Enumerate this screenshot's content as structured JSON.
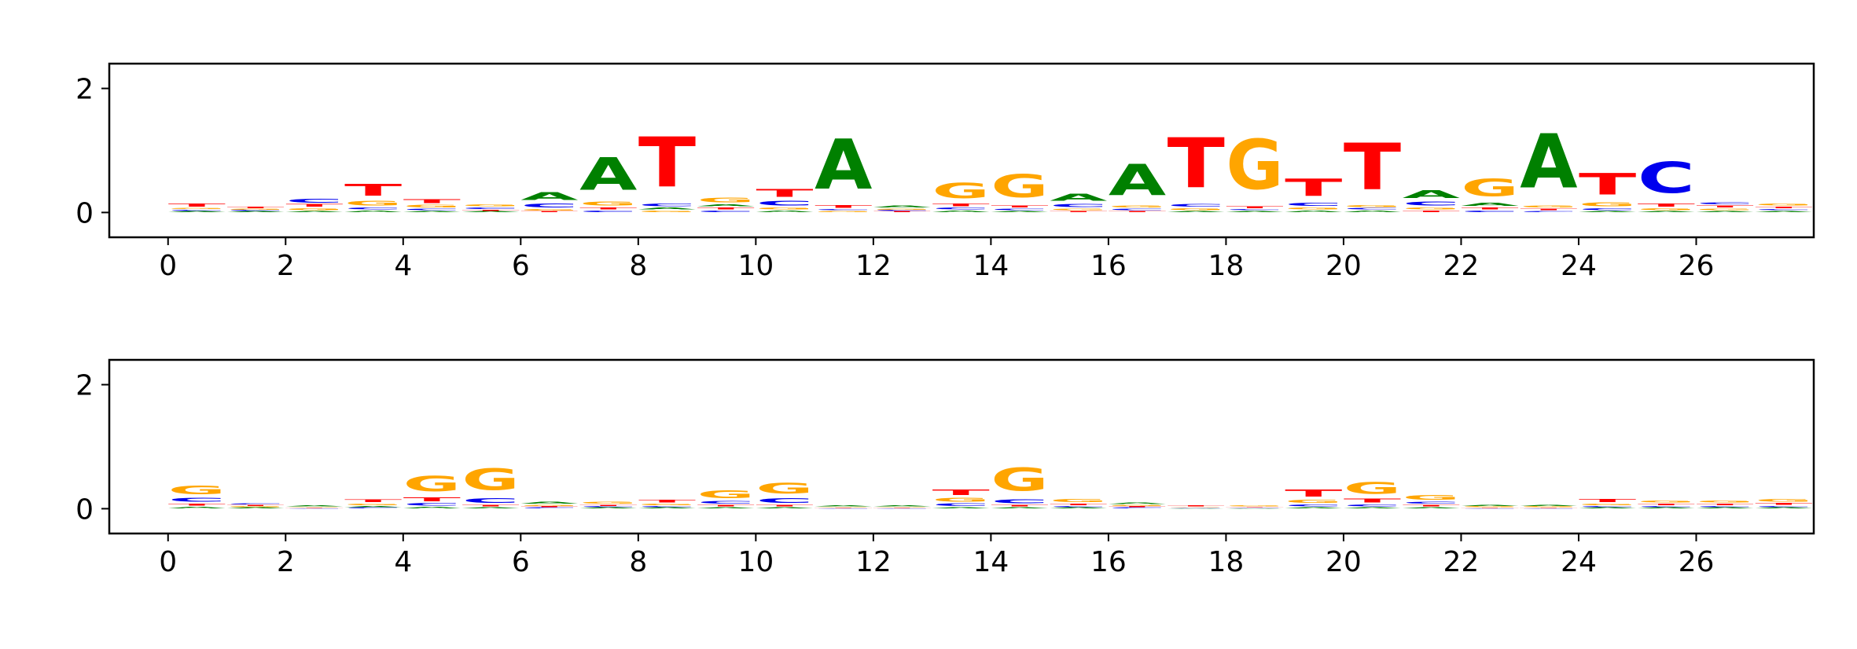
{
  "colors": {
    "A": "#008000",
    "C": "#0000ee",
    "G": "#ffa500",
    "T": "#ff0000"
  },
  "chart_data": [
    {
      "type": "sequence-logo",
      "title": "",
      "xlabel": "",
      "ylabel": "",
      "xlim": [
        -1,
        28
      ],
      "ylim": [
        -0.4,
        2.4
      ],
      "xticks": [
        0,
        2,
        4,
        6,
        8,
        10,
        12,
        14,
        16,
        18,
        20,
        22,
        24,
        26
      ],
      "yticks": [
        0,
        2
      ],
      "positions": [
        [
          {
            "b": "A",
            "h": 0.02
          },
          {
            "b": "C",
            "h": 0.03
          },
          {
            "b": "G",
            "h": 0.03
          },
          {
            "b": "T",
            "h": 0.08
          }
        ],
        [
          {
            "b": "A",
            "h": 0.02
          },
          {
            "b": "C",
            "h": 0.02
          },
          {
            "b": "G",
            "h": 0.02
          },
          {
            "b": "T",
            "h": 0.04
          }
        ],
        [
          {
            "b": "A",
            "h": 0.03
          },
          {
            "b": "G",
            "h": 0.05
          },
          {
            "b": "T",
            "h": 0.06
          },
          {
            "b": "C",
            "h": 0.1
          }
        ],
        [
          {
            "b": "A",
            "h": 0.04
          },
          {
            "b": "C",
            "h": 0.05
          },
          {
            "b": "G",
            "h": 0.12
          },
          {
            "b": "T",
            "h": 0.3
          }
        ],
        [
          {
            "b": "A",
            "h": 0.03
          },
          {
            "b": "C",
            "h": 0.04
          },
          {
            "b": "G",
            "h": 0.06
          },
          {
            "b": "T",
            "h": 0.1
          }
        ],
        [
          {
            "b": "A",
            "h": 0.02
          },
          {
            "b": "T",
            "h": 0.03
          },
          {
            "b": "C",
            "h": 0.04
          },
          {
            "b": "G",
            "h": 0.05
          }
        ],
        [
          {
            "b": "T",
            "h": 0.02
          },
          {
            "b": "G",
            "h": 0.04
          },
          {
            "b": "C",
            "h": 0.1
          },
          {
            "b": "A",
            "h": 0.2
          }
        ],
        [
          {
            "b": "C",
            "h": 0.04
          },
          {
            "b": "T",
            "h": 0.05
          },
          {
            "b": "G",
            "h": 0.1
          },
          {
            "b": "A",
            "h": 0.85
          }
        ],
        [
          {
            "b": "G",
            "h": 0.04
          },
          {
            "b": "A",
            "h": 0.05
          },
          {
            "b": "C",
            "h": 0.06
          },
          {
            "b": "T",
            "h": 1.3
          }
        ],
        [
          {
            "b": "C",
            "h": 0.04
          },
          {
            "b": "T",
            "h": 0.05
          },
          {
            "b": "A",
            "h": 0.05
          },
          {
            "b": "G",
            "h": 0.12
          }
        ],
        [
          {
            "b": "A",
            "h": 0.04
          },
          {
            "b": "G",
            "h": 0.05
          },
          {
            "b": "C",
            "h": 0.12
          },
          {
            "b": "T",
            "h": 0.2
          }
        ],
        [
          {
            "b": "G",
            "h": 0.03
          },
          {
            "b": "C",
            "h": 0.03
          },
          {
            "b": "T",
            "h": 0.06
          },
          {
            "b": "A",
            "h": 1.3
          }
        ],
        [
          {
            "b": "T",
            "h": 0.02
          },
          {
            "b": "C",
            "h": 0.02
          },
          {
            "b": "G",
            "h": 0.03
          },
          {
            "b": "A",
            "h": 0.05
          }
        ],
        [
          {
            "b": "A",
            "h": 0.04
          },
          {
            "b": "C",
            "h": 0.05
          },
          {
            "b": "T",
            "h": 0.06
          },
          {
            "b": "G",
            "h": 0.4
          }
        ],
        [
          {
            "b": "A",
            "h": 0.03
          },
          {
            "b": "C",
            "h": 0.04
          },
          {
            "b": "T",
            "h": 0.05
          },
          {
            "b": "G",
            "h": 0.6
          }
        ],
        [
          {
            "b": "T",
            "h": 0.03
          },
          {
            "b": "G",
            "h": 0.04
          },
          {
            "b": "C",
            "h": 0.08
          },
          {
            "b": "A",
            "h": 0.18
          }
        ],
        [
          {
            "b": "T",
            "h": 0.03
          },
          {
            "b": "C",
            "h": 0.04
          },
          {
            "b": "G",
            "h": 0.05
          },
          {
            "b": "A",
            "h": 0.8
          }
        ],
        [
          {
            "b": "A",
            "h": 0.03
          },
          {
            "b": "G",
            "h": 0.05
          },
          {
            "b": "C",
            "h": 0.06
          },
          {
            "b": "T",
            "h": 1.3
          }
        ],
        [
          {
            "b": "A",
            "h": 0.03
          },
          {
            "b": "C",
            "h": 0.03
          },
          {
            "b": "T",
            "h": 0.05
          },
          {
            "b": "G",
            "h": 1.3
          }
        ],
        [
          {
            "b": "A",
            "h": 0.04
          },
          {
            "b": "G",
            "h": 0.05
          },
          {
            "b": "C",
            "h": 0.08
          },
          {
            "b": "T",
            "h": 0.45
          }
        ],
        [
          {
            "b": "A",
            "h": 0.04
          },
          {
            "b": "C",
            "h": 0.04
          },
          {
            "b": "G",
            "h": 0.05
          },
          {
            "b": "T",
            "h": 1.2
          }
        ],
        [
          {
            "b": "T",
            "h": 0.04
          },
          {
            "b": "G",
            "h": 0.05
          },
          {
            "b": "C",
            "h": 0.1
          },
          {
            "b": "A",
            "h": 0.2
          }
        ],
        [
          {
            "b": "C",
            "h": 0.04
          },
          {
            "b": "T",
            "h": 0.05
          },
          {
            "b": "A",
            "h": 0.08
          },
          {
            "b": "G",
            "h": 0.45
          }
        ],
        [
          {
            "b": "C",
            "h": 0.03
          },
          {
            "b": "T",
            "h": 0.04
          },
          {
            "b": "G",
            "h": 0.05
          },
          {
            "b": "A",
            "h": 1.4
          }
        ],
        [
          {
            "b": "A",
            "h": 0.03
          },
          {
            "b": "C",
            "h": 0.05
          },
          {
            "b": "G",
            "h": 0.1
          },
          {
            "b": "T",
            "h": 0.55
          }
        ],
        [
          {
            "b": "A",
            "h": 0.03
          },
          {
            "b": "G",
            "h": 0.05
          },
          {
            "b": "T",
            "h": 0.08
          },
          {
            "b": "C",
            "h": 0.8
          }
        ],
        [
          {
            "b": "A",
            "h": 0.03
          },
          {
            "b": "G",
            "h": 0.04
          },
          {
            "b": "T",
            "h": 0.05
          },
          {
            "b": "C",
            "h": 0.05
          }
        ],
        [
          {
            "b": "A",
            "h": 0.03
          },
          {
            "b": "C",
            "h": 0.03
          },
          {
            "b": "T",
            "h": 0.04
          },
          {
            "b": "G",
            "h": 0.05
          }
        ]
      ]
    },
    {
      "type": "sequence-logo",
      "title": "",
      "xlabel": "",
      "ylabel": "",
      "xlim": [
        -1,
        28
      ],
      "ylim": [
        -0.4,
        2.4
      ],
      "xticks": [
        0,
        2,
        4,
        6,
        8,
        10,
        12,
        14,
        16,
        18,
        20,
        22,
        24,
        26
      ],
      "yticks": [
        0,
        2
      ],
      "positions": [
        [
          {
            "b": "A",
            "h": 0.04
          },
          {
            "b": "T",
            "h": 0.05
          },
          {
            "b": "C",
            "h": 0.1
          },
          {
            "b": "G",
            "h": 0.22
          }
        ],
        [
          {
            "b": "A",
            "h": 0.02
          },
          {
            "b": "G",
            "h": 0.02
          },
          {
            "b": "T",
            "h": 0.02
          },
          {
            "b": "C",
            "h": 0.03
          }
        ],
        [
          {
            "b": "C",
            "h": 0.01
          },
          {
            "b": "T",
            "h": 0.01
          },
          {
            "b": "G",
            "h": 0.01
          },
          {
            "b": "A",
            "h": 0.02
          }
        ],
        [
          {
            "b": "C",
            "h": 0.02
          },
          {
            "b": "A",
            "h": 0.03
          },
          {
            "b": "G",
            "h": 0.04
          },
          {
            "b": "T",
            "h": 0.07
          }
        ],
        [
          {
            "b": "A",
            "h": 0.04
          },
          {
            "b": "C",
            "h": 0.06
          },
          {
            "b": "T",
            "h": 0.1
          },
          {
            "b": "G",
            "h": 0.4
          }
        ],
        [
          {
            "b": "A",
            "h": 0.03
          },
          {
            "b": "T",
            "h": 0.04
          },
          {
            "b": "C",
            "h": 0.12
          },
          {
            "b": "G",
            "h": 0.55
          }
        ],
        [
          {
            "b": "C",
            "h": 0.02
          },
          {
            "b": "T",
            "h": 0.02
          },
          {
            "b": "G",
            "h": 0.03
          },
          {
            "b": "A",
            "h": 0.05
          }
        ],
        [
          {
            "b": "A",
            "h": 0.02
          },
          {
            "b": "C",
            "h": 0.02
          },
          {
            "b": "T",
            "h": 0.03
          },
          {
            "b": "G",
            "h": 0.05
          }
        ],
        [
          {
            "b": "A",
            "h": 0.02
          },
          {
            "b": "C",
            "h": 0.03
          },
          {
            "b": "G",
            "h": 0.04
          },
          {
            "b": "T",
            "h": 0.06
          }
        ],
        [
          {
            "b": "A",
            "h": 0.03
          },
          {
            "b": "T",
            "h": 0.04
          },
          {
            "b": "C",
            "h": 0.06
          },
          {
            "b": "G",
            "h": 0.2
          }
        ],
        [
          {
            "b": "A",
            "h": 0.03
          },
          {
            "b": "T",
            "h": 0.04
          },
          {
            "b": "C",
            "h": 0.12
          },
          {
            "b": "G",
            "h": 0.28
          }
        ],
        [
          {
            "b": "C",
            "h": 0.01
          },
          {
            "b": "T",
            "h": 0.01
          },
          {
            "b": "G",
            "h": 0.01
          },
          {
            "b": "A",
            "h": 0.03
          }
        ],
        [
          {
            "b": "C",
            "h": 0.01
          },
          {
            "b": "T",
            "h": 0.01
          },
          {
            "b": "G",
            "h": 0.01
          },
          {
            "b": "A",
            "h": 0.02
          }
        ],
        [
          {
            "b": "A",
            "h": 0.03
          },
          {
            "b": "C",
            "h": 0.06
          },
          {
            "b": "G",
            "h": 0.1
          },
          {
            "b": "T",
            "h": 0.15
          }
        ],
        [
          {
            "b": "A",
            "h": 0.03
          },
          {
            "b": "T",
            "h": 0.04
          },
          {
            "b": "C",
            "h": 0.1
          },
          {
            "b": "G",
            "h": 0.6
          }
        ],
        [
          {
            "b": "A",
            "h": 0.02
          },
          {
            "b": "C",
            "h": 0.03
          },
          {
            "b": "T",
            "h": 0.04
          },
          {
            "b": "G",
            "h": 0.08
          }
        ],
        [
          {
            "b": "C",
            "h": 0.02
          },
          {
            "b": "T",
            "h": 0.02
          },
          {
            "b": "G",
            "h": 0.03
          },
          {
            "b": "A",
            "h": 0.04
          }
        ],
        [
          {
            "b": "A",
            "h": 0.01
          },
          {
            "b": "C",
            "h": 0.01
          },
          {
            "b": "G",
            "h": 0.01
          },
          {
            "b": "T",
            "h": 0.02
          }
        ],
        [
          {
            "b": "A",
            "h": 0.01
          },
          {
            "b": "C",
            "h": 0.01
          },
          {
            "b": "T",
            "h": 0.01
          },
          {
            "b": "G",
            "h": 0.02
          }
        ],
        [
          {
            "b": "A",
            "h": 0.03
          },
          {
            "b": "C",
            "h": 0.05
          },
          {
            "b": "G",
            "h": 0.08
          },
          {
            "b": "T",
            "h": 0.18
          }
        ],
        [
          {
            "b": "A",
            "h": 0.03
          },
          {
            "b": "C",
            "h": 0.05
          },
          {
            "b": "T",
            "h": 0.1
          },
          {
            "b": "G",
            "h": 0.3
          }
        ],
        [
          {
            "b": "A",
            "h": 0.03
          },
          {
            "b": "T",
            "h": 0.04
          },
          {
            "b": "C",
            "h": 0.05
          },
          {
            "b": "G",
            "h": 0.12
          }
        ],
        [
          {
            "b": "C",
            "h": 0.01
          },
          {
            "b": "T",
            "h": 0.01
          },
          {
            "b": "G",
            "h": 0.02
          },
          {
            "b": "A",
            "h": 0.02
          }
        ],
        [
          {
            "b": "C",
            "h": 0.01
          },
          {
            "b": "T",
            "h": 0.01
          },
          {
            "b": "G",
            "h": 0.02
          },
          {
            "b": "A",
            "h": 0.03
          }
        ],
        [
          {
            "b": "A",
            "h": 0.02
          },
          {
            "b": "C",
            "h": 0.03
          },
          {
            "b": "G",
            "h": 0.04
          },
          {
            "b": "T",
            "h": 0.08
          }
        ],
        [
          {
            "b": "A",
            "h": 0.02
          },
          {
            "b": "C",
            "h": 0.03
          },
          {
            "b": "T",
            "h": 0.04
          },
          {
            "b": "G",
            "h": 0.05
          }
        ],
        [
          {
            "b": "A",
            "h": 0.02
          },
          {
            "b": "C",
            "h": 0.03
          },
          {
            "b": "T",
            "h": 0.04
          },
          {
            "b": "G",
            "h": 0.05
          }
        ],
        [
          {
            "b": "A",
            "h": 0.02
          },
          {
            "b": "C",
            "h": 0.03
          },
          {
            "b": "T",
            "h": 0.05
          },
          {
            "b": "G",
            "h": 0.07
          }
        ]
      ]
    }
  ]
}
